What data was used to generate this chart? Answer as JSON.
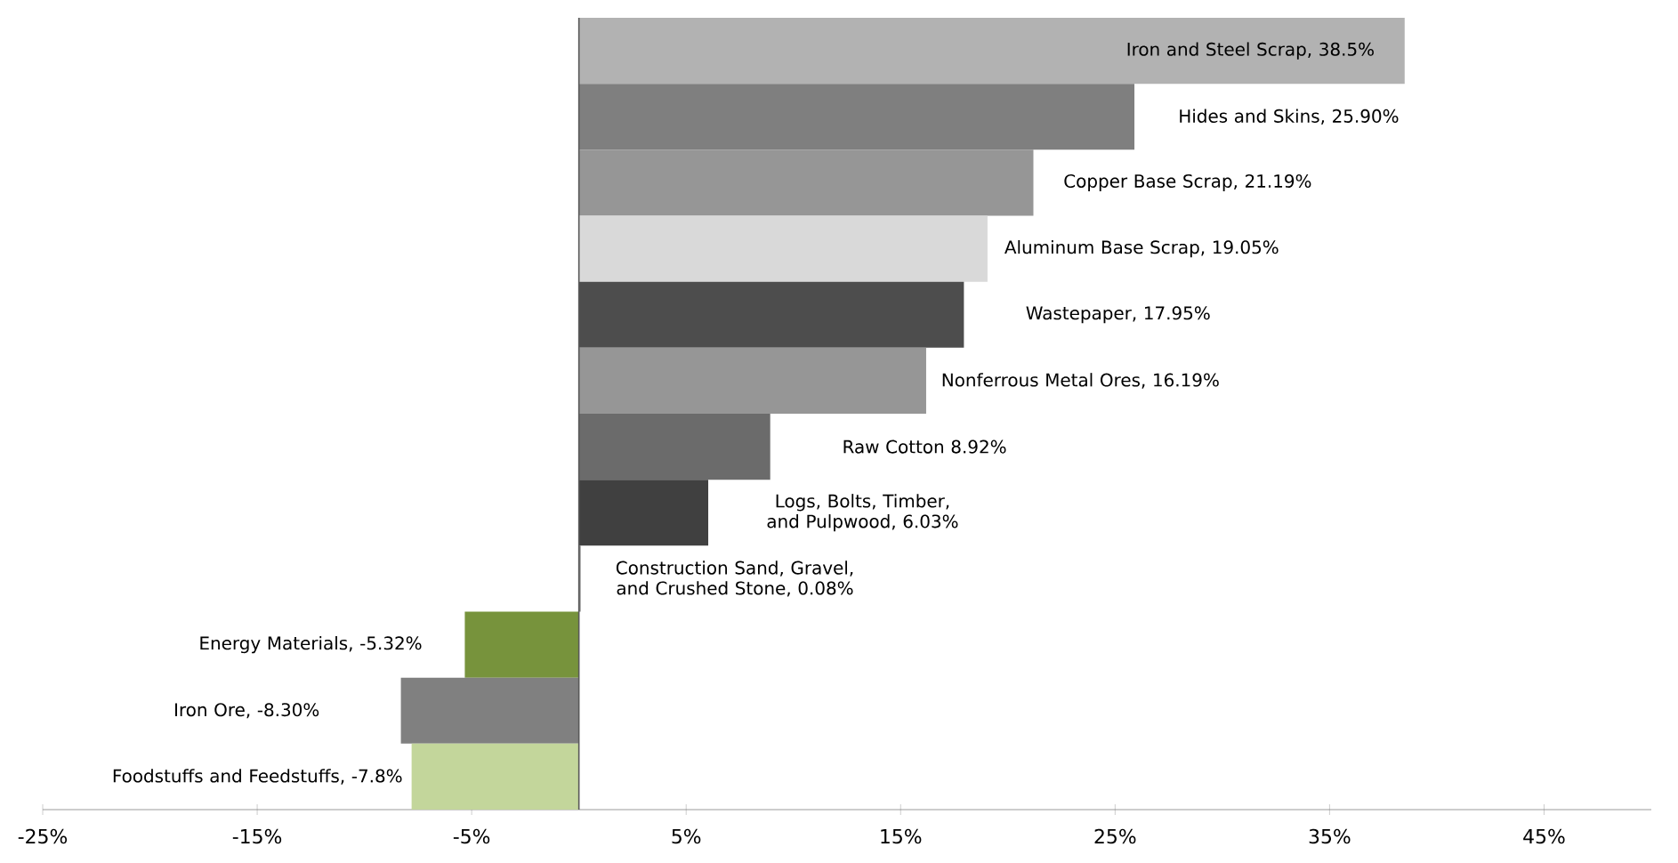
{
  "chart_data": {
    "type": "bar",
    "orientation": "horizontal",
    "categories": [
      null,
      null,
      null,
      null,
      null,
      null,
      null,
      null,
      null,
      null,
      null,
      null
    ],
    "annotations": [
      "Iron and Steel Scrap, 38.5%",
      "Hides and Skins, 25.90%",
      "Copper Base Scrap, 21.19%",
      "Aluminum Base Scrap, 19.05%",
      "Wastepaper, 17.95%",
      "Nonferrous Metal Ores, 16.19%",
      "Raw Cotton 8.92%",
      "Logs, Bolts, Timber, and Pulpwood, 6.03%",
      "Construction Sand, Gravel, and Crushed Stone, 0.08%",
      "Energy Materials, -5.32%",
      "Iron Ore, -8.30%",
      "Foodstuffs and Feedstuffs, -7.8%"
    ],
    "values": [
      38.5,
      25.9,
      21.19,
      19.05,
      17.95,
      16.19,
      8.92,
      6.03,
      0.08,
      -5.32,
      -8.3,
      -7.8
    ],
    "colors": [
      "#b2b2b2",
      "#7f7f7f",
      "#969696",
      "#d9d9d9",
      "#4d4d4d",
      "#969696",
      "#6b6b6b",
      "#404040",
      "#7f7f7f",
      "#77933c",
      "#808080",
      "#c3d69b"
    ],
    "xlim": [
      -25,
      50
    ],
    "xticks": [
      {
        "value": -25,
        "label": "-25%"
      },
      {
        "value": -15,
        "label": "-15%"
      },
      {
        "value": -5,
        "label": "-5%"
      },
      {
        "value": 5,
        "label": "5%"
      },
      {
        "value": 15,
        "label": "15%"
      },
      {
        "value": 25,
        "label": "25%"
      },
      {
        "value": 35,
        "label": "35%"
      },
      {
        "value": 45,
        "label": "45%"
      }
    ]
  }
}
